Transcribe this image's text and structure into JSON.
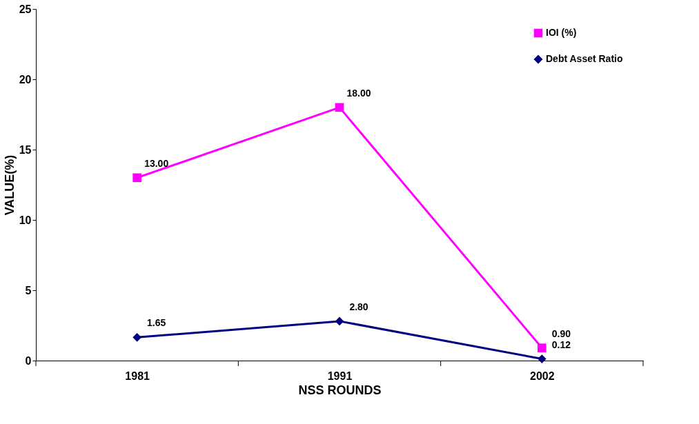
{
  "chart_data": {
    "type": "line",
    "xlabel": "NSS ROUNDS",
    "ylabel": "VALUE(%)",
    "categories": [
      "1981",
      "1991",
      "2002"
    ],
    "series": [
      {
        "name": "IOI (%)",
        "color": "#ff00ff",
        "marker": "square",
        "values": [
          13.0,
          18.0,
          0.9
        ],
        "value_labels": [
          "13.00",
          "18.00",
          "0.90"
        ]
      },
      {
        "name": "Debt Asset Ratio",
        "color": "#000080",
        "marker": "diamond",
        "values": [
          1.65,
          2.8,
          0.12
        ],
        "value_labels": [
          "1.65",
          "2.80",
          "0.12"
        ]
      }
    ],
    "ylim": [
      0,
      25
    ],
    "yticks": [
      0,
      5,
      10,
      15,
      20,
      25
    ],
    "grid": false,
    "legend": "top right"
  }
}
